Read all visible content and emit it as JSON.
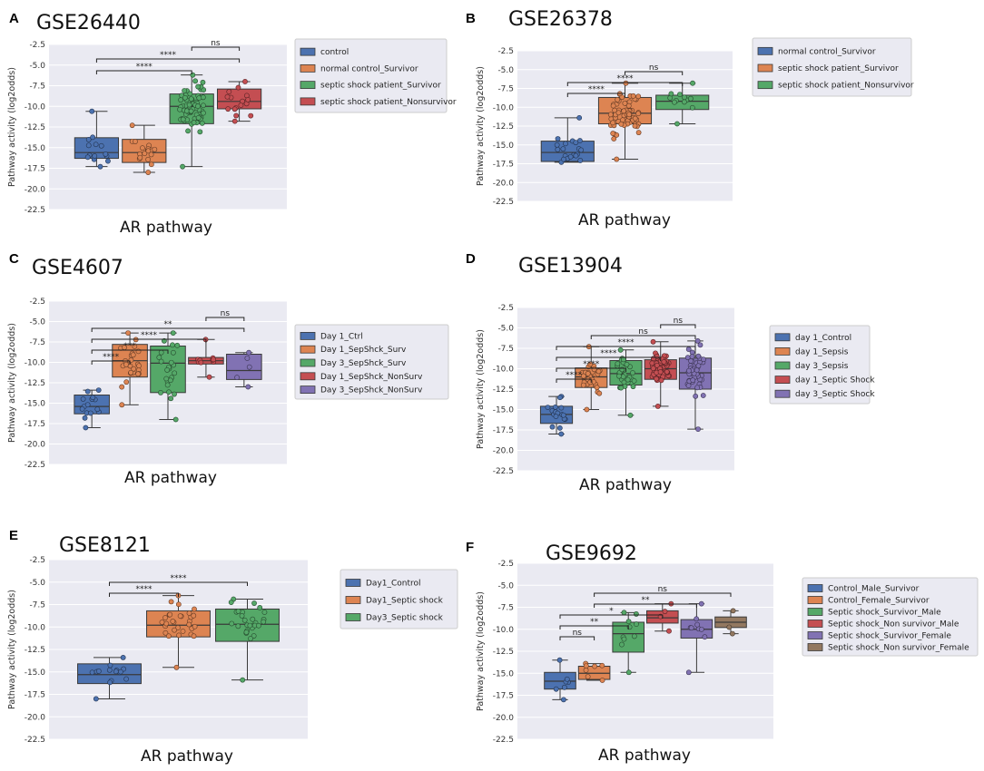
{
  "chart_data": [
    {
      "panel": "A",
      "title": "GSE26440",
      "type": "box",
      "xlabel": "AR pathway",
      "ylabel": "Pathway activity (log2odds)",
      "ylim": [
        -22.5,
        -2.5
      ],
      "yticks": [
        "-2.5",
        "-5.0",
        "-7.5",
        "-10.0",
        "-12.5",
        "-15.0",
        "-17.5",
        "-20.0",
        "-22.5"
      ],
      "legend": [
        "control",
        "normal control_Survivor",
        "septic shock patient_Survivor",
        "septic shock patient_Nonsurvivor"
      ],
      "colors": [
        "#4c72b0",
        "#dd8452",
        "#55a868",
        "#c44e52"
      ],
      "series": [
        {
          "name": "control",
          "q1": -16.3,
          "median": -15.6,
          "q3": -13.8,
          "wlow": -17.3,
          "whigh": -10.6,
          "n": 14
        },
        {
          "name": "normal control_Survivor",
          "q1": -16.8,
          "median": -15.6,
          "q3": -14.0,
          "wlow": -18.0,
          "whigh": -12.3,
          "n": 18
        },
        {
          "name": "septic shock patient_Survivor",
          "q1": -12.1,
          "median": -10.0,
          "q3": -8.5,
          "wlow": -17.3,
          "whigh": -6.2,
          "n": 67
        },
        {
          "name": "septic shock patient_Nonsurvivor",
          "q1": -10.3,
          "median": -9.4,
          "q3": -7.9,
          "wlow": -11.8,
          "whigh": -7.0,
          "n": 17
        }
      ],
      "significance": [
        {
          "from": 0,
          "to": 2,
          "label": "****"
        },
        {
          "from": 0,
          "to": 3,
          "label": "****"
        },
        {
          "from": 2,
          "to": 3,
          "label": "ns"
        }
      ]
    },
    {
      "panel": "B",
      "title": "GSE26378",
      "type": "box",
      "xlabel": "AR pathway",
      "ylabel": "Pathway activity (log2odds)",
      "ylim": [
        -22.5,
        -2.5
      ],
      "yticks": [
        "-2.5",
        "-5.0",
        "-7.5",
        "-10.0",
        "-12.5",
        "-15.0",
        "-17.5",
        "-20.0",
        "-22.5"
      ],
      "legend": [
        "normal control_Survivor",
        "septic shock patient_Survivor",
        "septic shock patient_Nonsurvivor"
      ],
      "colors": [
        "#4c72b0",
        "#dd8452",
        "#55a868"
      ],
      "series": [
        {
          "name": "normal control_Survivor",
          "q1": -17.2,
          "median": -16.0,
          "q3": -14.5,
          "wlow": -17.3,
          "whigh": -11.4,
          "n": 20
        },
        {
          "name": "septic shock patient_Survivor",
          "q1": -12.2,
          "median": -10.8,
          "q3": -8.7,
          "wlow": -16.9,
          "whigh": -6.8,
          "n": 70
        },
        {
          "name": "septic shock patient_Nonsurvivor",
          "q1": -10.3,
          "median": -9.2,
          "q3": -8.4,
          "wlow": -12.2,
          "whigh": -6.8,
          "n": 12
        }
      ],
      "significance": [
        {
          "from": 0,
          "to": 1,
          "label": "****"
        },
        {
          "from": 0,
          "to": 2,
          "label": "****"
        },
        {
          "from": 1,
          "to": 2,
          "label": "ns"
        }
      ]
    },
    {
      "panel": "C",
      "title": "GSE4607",
      "type": "box",
      "xlabel": "AR pathway",
      "ylabel": "Pathway activity (log2odds)",
      "ylim": [
        -22.5,
        -2.5
      ],
      "yticks": [
        "-2.5",
        "-5.0",
        "-7.5",
        "-10.0",
        "-12.5",
        "-15.0",
        "-17.5",
        "-20.0",
        "-22.5"
      ],
      "legend": [
        "Day 1_Ctrl",
        "Day 1_SepShck_Surv",
        "Day 3_SepShck_Surv",
        "Day 1_SepShck_NonSurv",
        "Day 3_SepShck_NonSurv"
      ],
      "colors": [
        "#4c72b0",
        "#dd8452",
        "#55a868",
        "#c44e52",
        "#8172b3"
      ],
      "series": [
        {
          "name": "Day 1_Ctrl",
          "q1": -16.3,
          "median": -15.4,
          "q3": -14.0,
          "wlow": -18.0,
          "whigh": -13.4,
          "n": 15
        },
        {
          "name": "Day 1_SepShck_Surv",
          "q1": -11.8,
          "median": -9.8,
          "q3": -7.8,
          "wlow": -15.2,
          "whigh": -6.4,
          "n": 27
        },
        {
          "name": "Day 3_SepShck_Surv",
          "q1": -13.7,
          "median": -10.1,
          "q3": -8.0,
          "wlow": -17.0,
          "whigh": -6.4,
          "n": 24
        },
        {
          "name": "Day 1_SepShck_NonSurv",
          "q1": -10.2,
          "median": -9.8,
          "q3": -9.4,
          "wlow": -11.8,
          "whigh": -7.2,
          "n": 10
        },
        {
          "name": "Day 3_SepShck_NonSurv",
          "q1": -12.1,
          "median": -11.0,
          "q3": -9.0,
          "wlow": -13.0,
          "whigh": -8.8,
          "n": 5
        }
      ],
      "significance": [
        {
          "from": 0,
          "to": 1,
          "label": "****"
        },
        {
          "from": 0,
          "to": 2,
          "label": "***"
        },
        {
          "from": 0,
          "to": 3,
          "label": "****"
        },
        {
          "from": 0,
          "to": 4,
          "label": "**"
        },
        {
          "from": 3,
          "to": 4,
          "label": "ns"
        }
      ]
    },
    {
      "panel": "D",
      "title": "GSE13904",
      "type": "box",
      "xlabel": "AR pathway",
      "ylabel": "Pathway activity (log2odds)",
      "ylim": [
        -22.5,
        -2.5
      ],
      "yticks": [
        "-2.5",
        "-5.0",
        "-7.5",
        "-10.0",
        "-12.5",
        "-15.0",
        "-17.5",
        "-20.0",
        "-22.5"
      ],
      "legend": [
        "day 1_Control",
        "day 1_Sepsis",
        "day 3_Sepsis",
        "day 1_Septic Shock",
        "day 3_Septic Shock"
      ],
      "colors": [
        "#4c72b0",
        "#dd8452",
        "#55a868",
        "#c44e52",
        "#8172b3"
      ],
      "series": [
        {
          "name": "day 1_Control",
          "q1": -16.7,
          "median": -15.6,
          "q3": -14.6,
          "wlow": -18.0,
          "whigh": -13.4,
          "n": 18
        },
        {
          "name": "day 1_Sepsis",
          "q1": -12.3,
          "median": -11.0,
          "q3": -9.9,
          "wlow": -15.0,
          "whigh": -7.3,
          "n": 32
        },
        {
          "name": "day 3_Sepsis",
          "q1": -12.0,
          "median": -10.6,
          "q3": -9.0,
          "wlow": -15.7,
          "whigh": -7.7,
          "n": 30
        },
        {
          "name": "day 1_Septic Shock",
          "q1": -11.3,
          "median": -10.0,
          "q3": -8.9,
          "wlow": -14.6,
          "whigh": -6.7,
          "n": 70
        },
        {
          "name": "day 3_Septic Shock",
          "q1": -12.5,
          "median": -10.5,
          "q3": -8.7,
          "wlow": -17.4,
          "whigh": -6.6,
          "n": 45
        }
      ],
      "significance": [
        {
          "from": 0,
          "to": 1,
          "label": "****"
        },
        {
          "from": 0,
          "to": 2,
          "label": "****"
        },
        {
          "from": 0,
          "to": 3,
          "label": "****"
        },
        {
          "from": 0,
          "to": 4,
          "label": "****"
        },
        {
          "from": 1,
          "to": 4,
          "label": "ns"
        },
        {
          "from": 3,
          "to": 4,
          "label": "ns"
        }
      ]
    },
    {
      "panel": "E",
      "title": "GSE8121",
      "type": "box",
      "xlabel": "AR pathway",
      "ylabel": "Pathway activity (log2odds)",
      "ylim": [
        -22.5,
        -2.5
      ],
      "yticks": [
        "-2.5",
        "-5.0",
        "-7.5",
        "-10.0",
        "-12.5",
        "-15.0",
        "-17.5",
        "-20.0",
        "-22.5"
      ],
      "legend": [
        "Day1_Control",
        "Day1_Septic shock",
        "Day3_Septic shock"
      ],
      "colors": [
        "#4c72b0",
        "#dd8452",
        "#55a868"
      ],
      "series": [
        {
          "name": "Day1_Control",
          "q1": -16.3,
          "median": -15.3,
          "q3": -14.1,
          "wlow": -18.0,
          "whigh": -13.4,
          "n": 15
        },
        {
          "name": "Day1_Septic shock",
          "q1": -11.1,
          "median": -9.8,
          "q3": -8.2,
          "wlow": -14.5,
          "whigh": -6.5,
          "n": 30
        },
        {
          "name": "Day3_Septic shock",
          "q1": -11.6,
          "median": -9.7,
          "q3": -8.0,
          "wlow": -15.9,
          "whigh": -6.9,
          "n": 28
        }
      ],
      "significance": [
        {
          "from": 0,
          "to": 1,
          "label": "****"
        },
        {
          "from": 0,
          "to": 2,
          "label": "****"
        }
      ]
    },
    {
      "panel": "F",
      "title": "GSE9692",
      "type": "box",
      "xlabel": "AR pathway",
      "ylabel": "Pathway activity (log2odds)",
      "ylim": [
        -22.5,
        -2.5
      ],
      "yticks": [
        "-2.5",
        "-5.0",
        "-7.5",
        "-10.0",
        "-12.5",
        "-15.0",
        "-17.5",
        "-20.0",
        "-22.5"
      ],
      "legend": [
        "Control_Male_Survivor",
        "Control_Female_Survivor",
        "Septic shock_Survivor_Male",
        "Septic shock_Non survivor_Male",
        "Septic shock_Survivor_Female",
        "Septic shock_Non survivor_Female"
      ],
      "colors": [
        "#4c72b0",
        "#dd8452",
        "#55a868",
        "#c44e52",
        "#8172b3",
        "#937860"
      ],
      "series": [
        {
          "name": "Control_Male_Survivor",
          "q1": -16.8,
          "median": -15.9,
          "q3": -14.9,
          "wlow": -18.0,
          "whigh": -13.5,
          "n": 7
        },
        {
          "name": "Control_Female_Survivor",
          "q1": -15.7,
          "median": -15.0,
          "q3": -14.2,
          "wlow": -15.8,
          "whigh": -13.9,
          "n": 7
        },
        {
          "name": "Septic shock_Survivor_Male",
          "q1": -12.6,
          "median": -10.5,
          "q3": -9.2,
          "wlow": -14.9,
          "whigh": -8.1,
          "n": 10
        },
        {
          "name": "Septic shock_Non survivor_Male",
          "q1": -9.3,
          "median": -8.7,
          "q3": -7.9,
          "wlow": -10.2,
          "whigh": -7.1,
          "n": 4
        },
        {
          "name": "Septic shock_Survivor_Female",
          "q1": -11.0,
          "median": -10.0,
          "q3": -8.9,
          "wlow": -14.9,
          "whigh": -7.1,
          "n": 9
        },
        {
          "name": "Septic shock_Non survivor_Female",
          "q1": -9.8,
          "median": -9.2,
          "q3": -8.6,
          "wlow": -10.5,
          "whigh": -7.9,
          "n": 3
        }
      ],
      "significance": [
        {
          "from": 0,
          "to": 1,
          "label": "ns"
        },
        {
          "from": 0,
          "to": 2,
          "label": "**"
        },
        {
          "from": 0,
          "to": 3,
          "label": "*"
        },
        {
          "from": 1,
          "to": 4,
          "label": "**"
        },
        {
          "from": 1,
          "to": 5,
          "label": "ns"
        }
      ]
    }
  ]
}
